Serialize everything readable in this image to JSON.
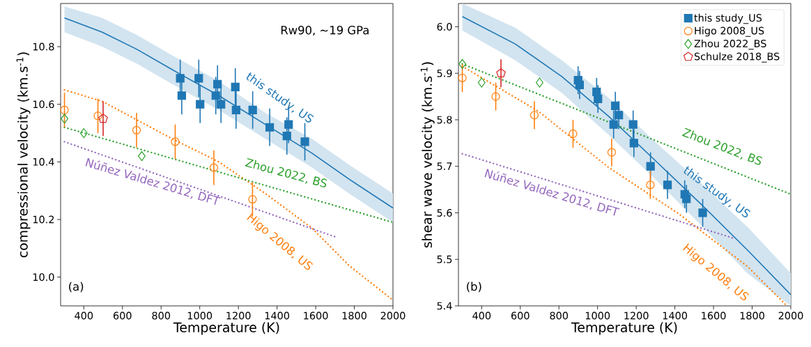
{
  "chart_data": [
    {
      "type": "scatter",
      "xlabel": "Temperature (K)",
      "ylabel": "compressional velocity (km.s$^{-1}$)",
      "xlim": [
        280,
        2000
      ],
      "ylim": [
        9.9,
        10.95
      ],
      "xticks": [
        400,
        600,
        800,
        1000,
        1200,
        1400,
        1600,
        1800,
        2000
      ],
      "yticks": [
        {
          "value": 10.0,
          "label": "10.0"
        },
        10.2,
        10.4,
        10.6,
        10.8
      ],
      "series": [
        {
          "marker": "square",
          "color": "#1f77b4",
          "x": [
            899,
            907,
            995,
            1002,
            1083,
            1092,
            1110,
            1184,
            1188,
            1274,
            1362,
            1451,
            1460,
            1544
          ],
          "values": [
            10.69,
            10.63,
            10.69,
            10.6,
            10.63,
            10.67,
            10.6,
            10.66,
            10.58,
            10.58,
            10.52,
            10.49,
            10.53,
            10.47
          ],
          "errors": [
            0.065,
            0.065,
            0.065,
            0.065,
            0.065,
            0.065,
            0.065,
            0.065,
            0.065,
            0.065,
            0.065,
            0.065,
            0.065,
            0.065
          ]
        },
        {
          "marker": "circle",
          "color": "#ff7f0e",
          "x": [
            300,
            473,
            673,
            873,
            1073,
            1273
          ],
          "values": [
            10.58,
            10.56,
            10.51,
            10.47,
            10.38,
            10.27
          ],
          "errors": [
            0.06,
            0.06,
            0.06,
            0.06,
            0.06,
            0.06
          ]
        },
        {
          "marker": "diamond",
          "color": "#2ca02c",
          "x": [
            300,
            400,
            700
          ],
          "values": [
            10.55,
            10.5,
            10.42
          ]
        },
        {
          "color": "#d62728",
          "x": [
            500
          ],
          "values": [
            10.55
          ],
          "errors": [
            0.06
          ]
        },
        {
          "type": "line",
          "line_style": "solid",
          "color": "#1f77b4",
          "x": [
            300,
            496,
            677,
            858,
            1099,
            1340,
            1581,
            1773,
            2000
          ],
          "values": [
            10.9,
            10.85,
            10.79,
            10.72,
            10.63,
            10.53,
            10.43,
            10.34,
            10.24
          ],
          "lower": [
            10.85,
            10.8,
            10.74,
            10.67,
            10.58,
            10.48,
            10.38,
            10.29,
            10.19
          ],
          "upper": [
            10.94,
            10.9,
            10.84,
            10.77,
            10.68,
            10.57,
            10.48,
            10.39,
            10.29
          ]
        },
        {
          "type": "line",
          "line_style": "dotted",
          "color": "#ff7f0e",
          "x": [
            300,
            496,
            858,
            1099,
            1340,
            1581,
            1773,
            2000
          ],
          "values": [
            10.65,
            10.61,
            10.48,
            10.4,
            10.29,
            10.17,
            10.04,
            9.92
          ]
        },
        {
          "type": "line",
          "line_style": "dotted",
          "color": "#2ca02c",
          "x": [
            300,
            2000
          ],
          "values": [
            10.52,
            10.19
          ]
        },
        {
          "type": "line",
          "line_style": "dotted",
          "color": "#9467bd",
          "x": [
            300,
            1700
          ],
          "values": [
            10.47,
            10.14
          ]
        }
      ],
      "annotations": [
        "Rw90, ~19 GPa",
        "(a)",
        "this study, US",
        "Zhou 2022, BS",
        "Núñez Valdez 2012, DFT",
        "Higo 2008, US"
      ]
    },
    {
      "type": "scatter",
      "xlabel": "Temperature (K)",
      "ylabel": "shear wave velocity (km.s$^{-1}$)",
      "xlim": [
        280,
        2000
      ],
      "ylim": [
        5.4,
        6.05
      ],
      "xticks": [
        400,
        600,
        800,
        1000,
        1200,
        1400,
        1600,
        1800,
        2000
      ],
      "yticks": [
        5.4,
        5.5,
        5.6,
        5.7,
        5.8,
        5.9,
        {
          "value": 6.0,
          "label": "6.0"
        }
      ],
      "legend": "top right",
      "series": [
        {
          "name": "this study_US",
          "marker": "square",
          "color": "#1f77b4",
          "x": [
            899,
            907,
            995,
            1002,
            1083,
            1092,
            1110,
            1184,
            1188,
            1274,
            1362,
            1451,
            1460,
            1544
          ],
          "values": [
            5.885,
            5.875,
            5.86,
            5.845,
            5.79,
            5.83,
            5.81,
            5.79,
            5.75,
            5.7,
            5.66,
            5.64,
            5.63,
            5.6
          ],
          "errors": [
            0.03,
            0.03,
            0.03,
            0.03,
            0.03,
            0.03,
            0.03,
            0.03,
            0.03,
            0.03,
            0.03,
            0.03,
            0.03,
            0.03
          ]
        },
        {
          "name": "Higo 2008_US",
          "marker": "circle",
          "color": "#ff7f0e",
          "x": [
            300,
            473,
            673,
            873,
            1073,
            1273
          ],
          "values": [
            5.89,
            5.85,
            5.81,
            5.77,
            5.73,
            5.66
          ],
          "errors": [
            0.03,
            0.03,
            0.03,
            0.03,
            0.03,
            0.03
          ]
        },
        {
          "name": "Zhou 2022_BS",
          "marker": "diamond",
          "color": "#2ca02c",
          "x": [
            300,
            400,
            700
          ],
          "values": [
            5.92,
            5.88,
            5.88
          ]
        },
        {
          "name": "Schulze 2018_BS",
          "color": "#d62728",
          "x": [
            500
          ],
          "values": [
            5.9
          ],
          "errors": [
            0.03
          ]
        },
        {
          "type": "line",
          "line_style": "solid",
          "color": "#1f77b4",
          "x": [
            300,
            574,
            815,
            1056,
            1297,
            1537,
            1778,
            2000
          ],
          "values": [
            6.022,
            5.963,
            5.893,
            5.808,
            5.713,
            5.618,
            5.519,
            5.424
          ],
          "lower": [
            5.992,
            5.928,
            5.858,
            5.768,
            5.673,
            5.573,
            5.469,
            5.4
          ],
          "upper": [
            6.05,
            5.998,
            5.928,
            5.848,
            5.753,
            5.663,
            5.569,
            5.47
          ]
        },
        {
          "type": "line",
          "line_style": "dotted",
          "color": "#ff7f0e",
          "x": [
            300,
            695,
            1056,
            1417,
            1778,
            1980
          ],
          "values": [
            5.915,
            5.818,
            5.698,
            5.599,
            5.484,
            5.4
          ]
        },
        {
          "type": "line",
          "line_style": "dotted",
          "color": "#2ca02c",
          "x": [
            300,
            2000
          ],
          "values": [
            5.92,
            5.64
          ]
        },
        {
          "type": "line",
          "line_style": "dotted",
          "color": "#9467bd",
          "x": [
            300,
            1700
          ],
          "values": [
            5.727,
            5.546
          ]
        }
      ],
      "annotations": [
        "(b)",
        "Zhou 2022, BS",
        "this study, US",
        "Núñez Valdez 2012, DFT",
        "Higo 2008, US"
      ]
    }
  ]
}
